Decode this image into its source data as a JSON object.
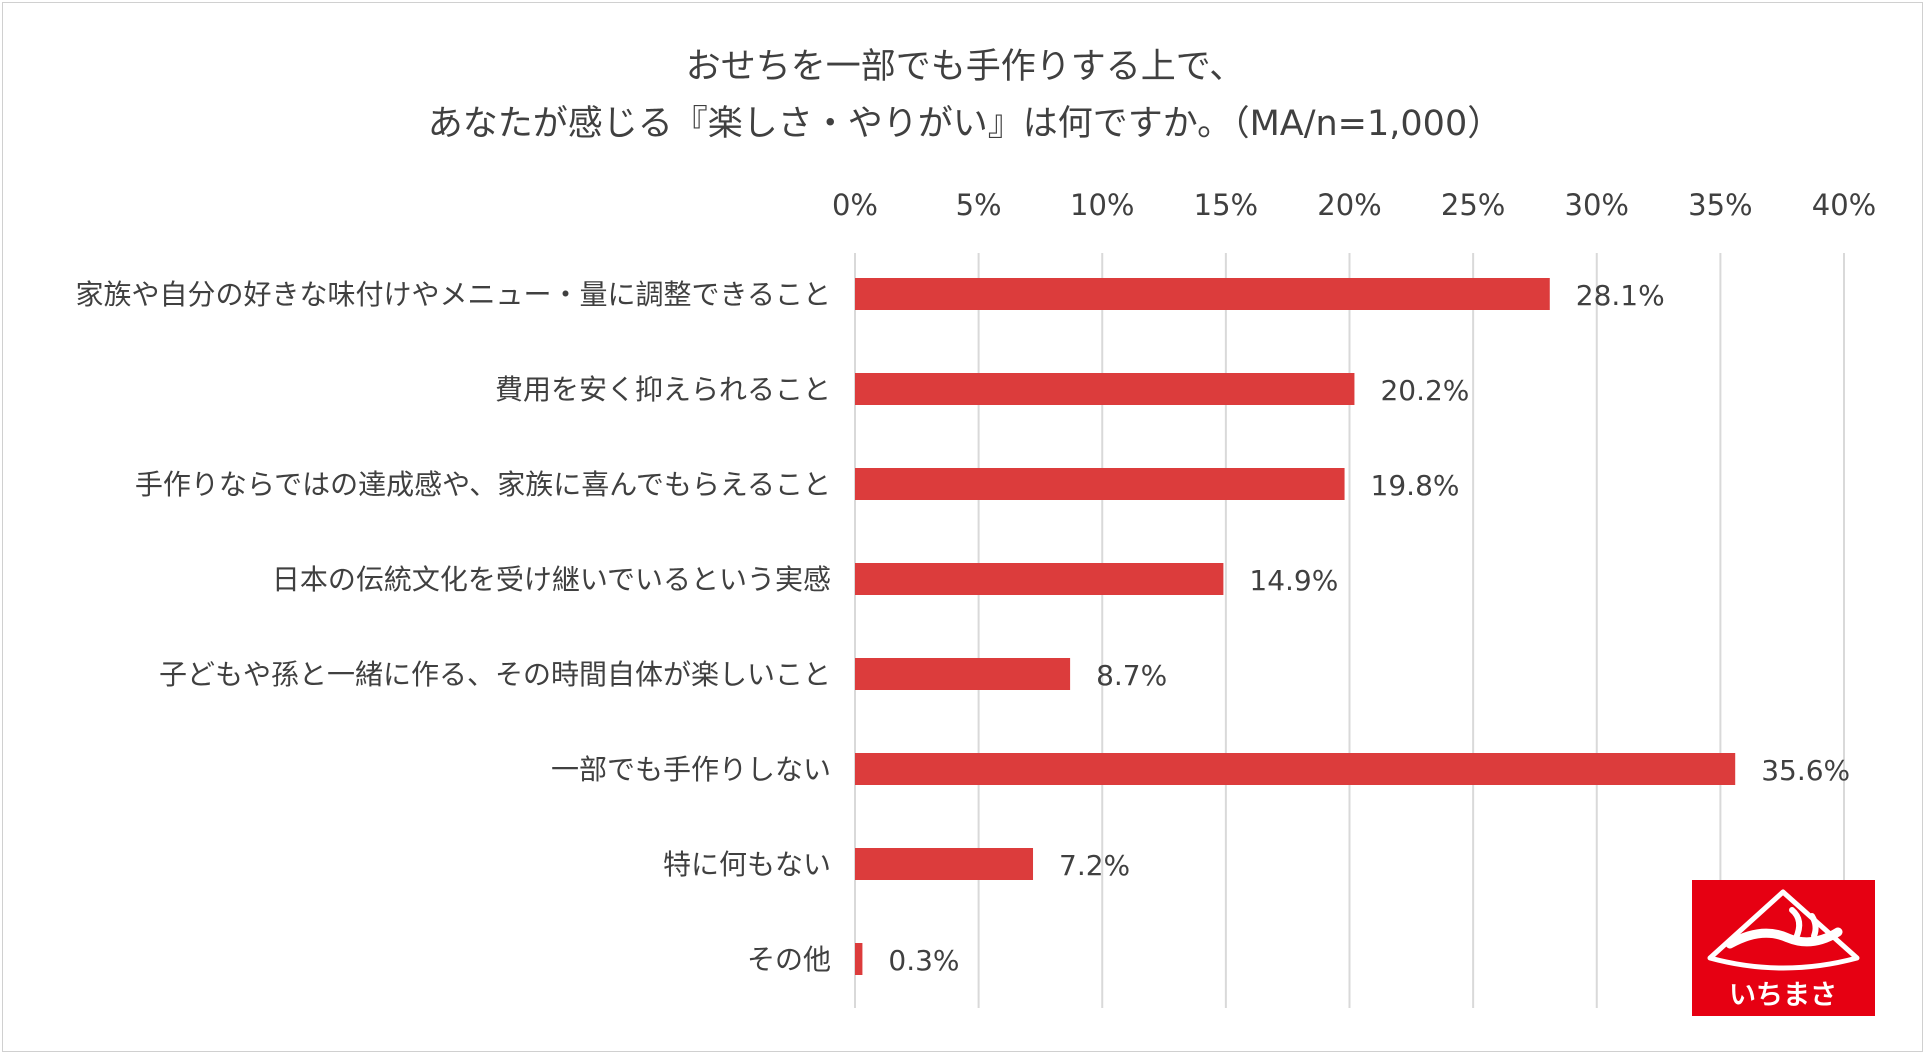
{
  "chart_data": {
    "type": "bar",
    "orientation": "horizontal",
    "title": [
      "おせちを一部でも手作りする上で、",
      "あなたが感じる『楽しさ・やりがい』は何ですか。（MA/n=1,000）"
    ],
    "categories": [
      "家族や自分の好きな味付けやメニュー・量に調整できること",
      "費用を安く抑えられること",
      "手作りならではの達成感や、家族に喜んでもらえること",
      "日本の伝統文化を受け継いでいるという実感",
      "子どもや孫と一緒に作る、その時間自体が楽しいこと",
      "一部でも手作りしない",
      "特に何もない",
      "その他"
    ],
    "values": [
      28.1,
      20.2,
      19.8,
      14.9,
      8.7,
      35.6,
      7.2,
      0.3
    ],
    "value_labels": [
      "28.1%",
      "20.2%",
      "19.8%",
      "14.9%",
      "8.7%",
      "35.6%",
      "7.2%",
      "0.3%"
    ],
    "xlim": [
      0,
      40
    ],
    "xticks": [
      "0%",
      "5%",
      "10%",
      "15%",
      "20%",
      "25%",
      "30%",
      "35%",
      "40%"
    ],
    "x_axis_position": "top",
    "grid": true,
    "bar_color": "#dc3c3c"
  },
  "logo": {
    "name": "ichimasa-logo",
    "text": "いちまさ",
    "background_color": "#e60012",
    "foreground_color": "#ffffff"
  }
}
